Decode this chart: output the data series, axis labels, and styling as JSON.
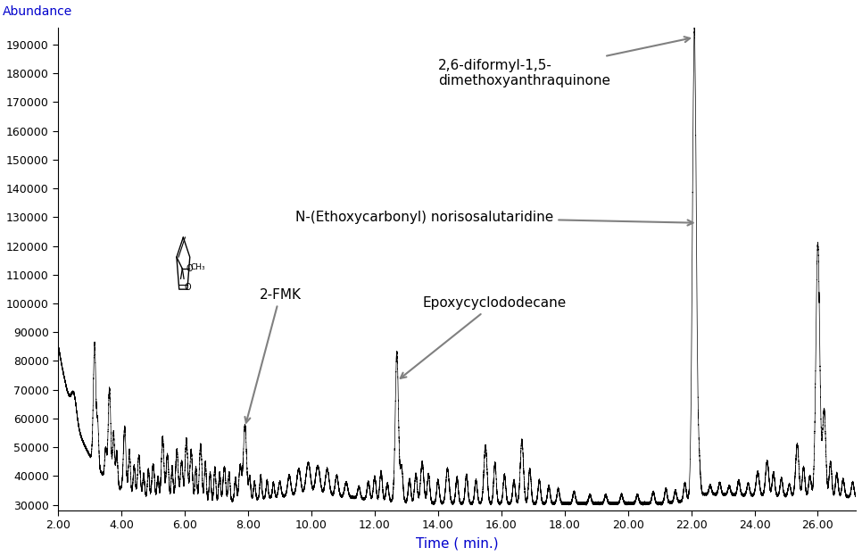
{
  "xlabel": "Time ( min.)",
  "ylabel": "Abundance",
  "xlabel_color": "#0000cc",
  "ylabel_color": "#0000cc",
  "xlim": [
    2.5,
    27.2
  ],
  "ylim": [
    28000,
    196000
  ],
  "yticks": [
    30000,
    40000,
    50000,
    60000,
    70000,
    80000,
    90000,
    100000,
    110000,
    120000,
    130000,
    140000,
    150000,
    160000,
    170000,
    180000,
    190000
  ],
  "xticks": [
    2.0,
    4.0,
    6.0,
    8.0,
    10.0,
    12.0,
    14.0,
    16.0,
    18.0,
    20.0,
    22.0,
    24.0,
    26.0
  ],
  "background_color": "#ffffff",
  "line_color": "#000000",
  "annotation_arrow_color": "#808080"
}
